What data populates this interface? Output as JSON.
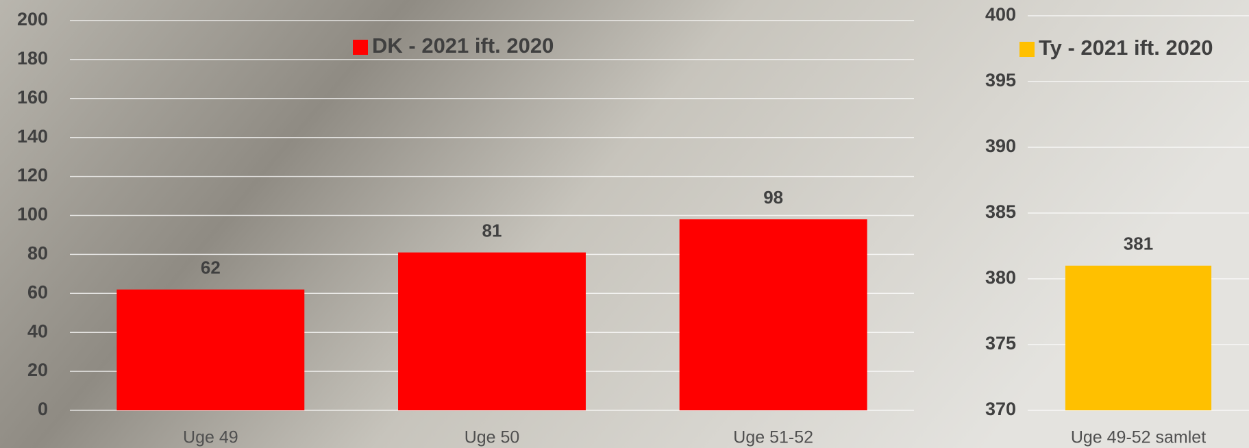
{
  "chart_data": [
    {
      "type": "bar",
      "categories": [
        "Uge 49",
        "Uge 50",
        "Uge 51-52"
      ],
      "series": [
        {
          "name": "DK - 2021 ift. 2020",
          "color": "#ff0000",
          "values": [
            62,
            81,
            98
          ]
        }
      ],
      "ylim": [
        0,
        200
      ],
      "yticks": [
        0,
        20,
        40,
        60,
        80,
        100,
        120,
        140,
        160,
        180,
        200
      ],
      "grid": true
    },
    {
      "type": "bar",
      "categories": [
        "Uge 49-52 samlet"
      ],
      "series": [
        {
          "name": "Ty - 2021 ift. 2020",
          "color": "#ffc000",
          "values": [
            381
          ]
        }
      ],
      "ylim": [
        370,
        400
      ],
      "yticks": [
        370,
        375,
        380,
        385,
        390,
        395,
        400
      ],
      "grid": true
    }
  ]
}
